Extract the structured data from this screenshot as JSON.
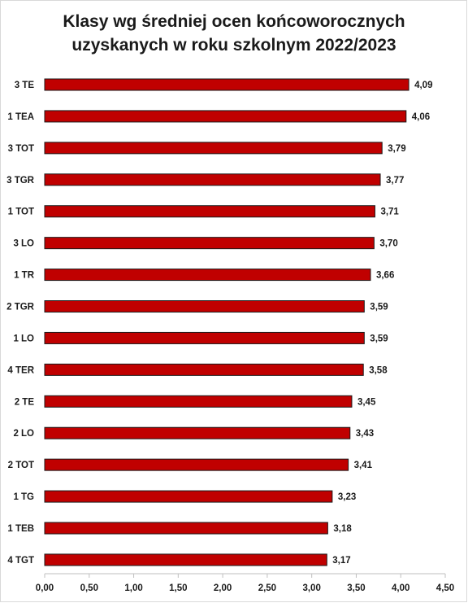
{
  "chart_data": {
    "type": "bar",
    "orientation": "horizontal",
    "title_lines": [
      "Klasy wg średniej ocen końcoworocznych",
      "uzyskanych w roku szkolnym 2022/2023"
    ],
    "categories": [
      "3 TE",
      "1 TEA",
      "3 TOT",
      "3 TGR",
      "1 TOT",
      "3 LO",
      "1 TR",
      "2 TGR",
      "1 LO",
      "4 TER",
      "2 TE",
      "2 LO",
      "2 TOT",
      "1 TG",
      "1 TEB",
      "4 TGT"
    ],
    "values": [
      4.09,
      4.06,
      3.79,
      3.77,
      3.71,
      3.7,
      3.66,
      3.59,
      3.59,
      3.58,
      3.45,
      3.43,
      3.41,
      3.23,
      3.18,
      3.17
    ],
    "value_labels": [
      "4,09",
      "4,06",
      "3,79",
      "3,77",
      "3,71",
      "3,70",
      "3,66",
      "3,59",
      "3,59",
      "3,58",
      "3,45",
      "3,43",
      "3,41",
      "3,23",
      "3,18",
      "3,17"
    ],
    "xlim": [
      0,
      4.5
    ],
    "x_ticks": [
      0,
      0.5,
      1,
      1.5,
      2,
      2.5,
      3,
      3.5,
      4,
      4.5
    ],
    "x_tick_labels": [
      "0,00",
      "0,50",
      "1,00",
      "1,50",
      "2,00",
      "2,50",
      "3,00",
      "3,50",
      "4,00",
      "4,50"
    ],
    "bar_color": "#c00000",
    "grid": false,
    "legend": "none"
  }
}
